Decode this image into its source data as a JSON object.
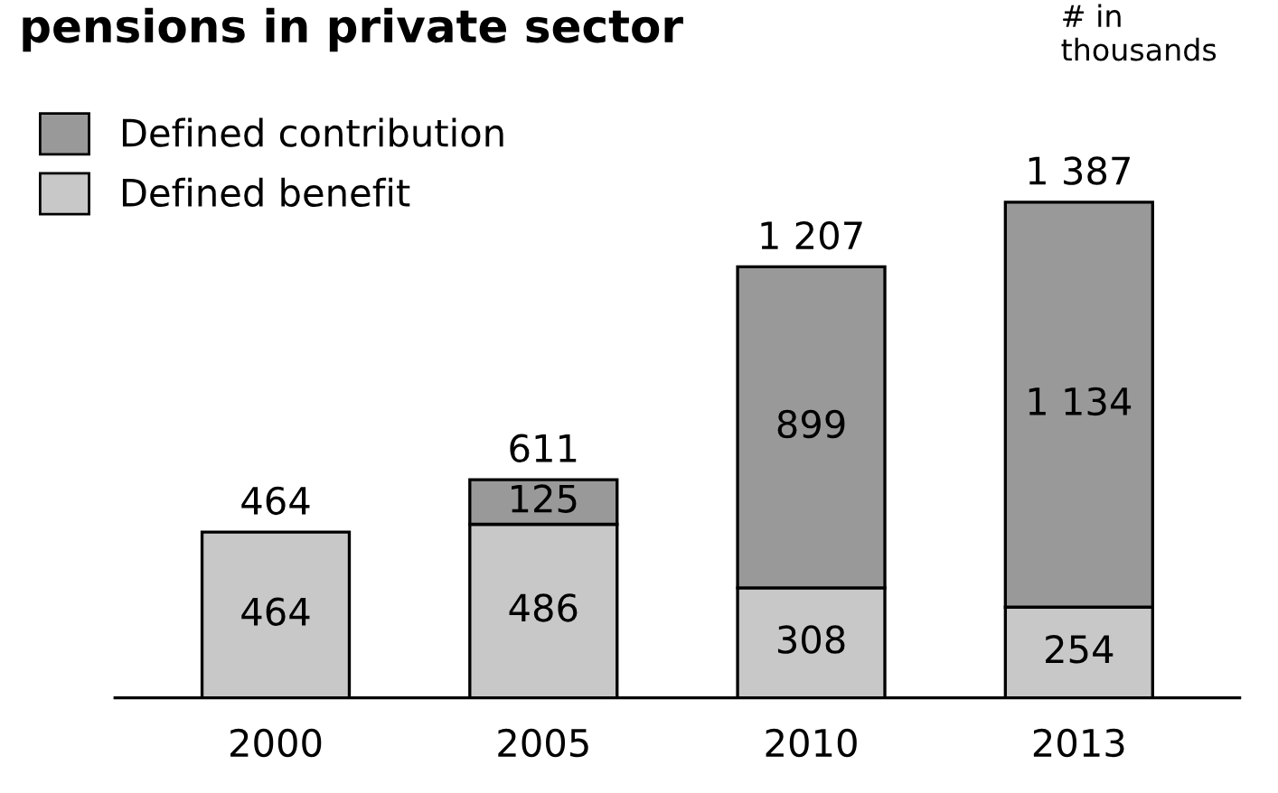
{
  "chart_data": {
    "type": "bar",
    "title": "pensions in private sector",
    "stacked": true,
    "categories": [
      "2000",
      "2005",
      "2010",
      "2013"
    ],
    "series": [
      {
        "name": "Defined benefit",
        "color": "#c8c8c8",
        "values": [
          464,
          486,
          308,
          254
        ],
        "value_labels": [
          "464",
          "486",
          "308",
          "254"
        ]
      },
      {
        "name": "Defined contribution",
        "color": "#999999",
        "values": [
          null,
          125,
          899,
          1134
        ],
        "value_labels": [
          null,
          "125",
          "899",
          "1 134"
        ]
      }
    ],
    "totals": [
      "464",
      "611",
      "1 207",
      "1 387"
    ],
    "annotations": [
      "# in\nthousands"
    ],
    "legend": "top left",
    "grid": false
  }
}
